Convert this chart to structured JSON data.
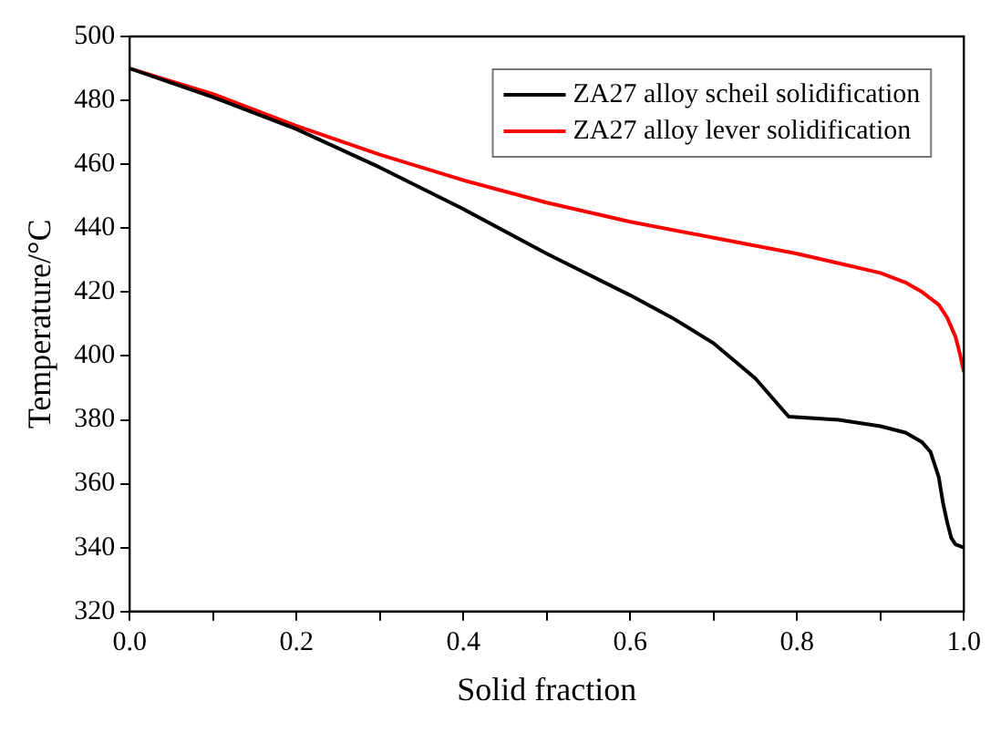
{
  "chart_data": {
    "type": "line",
    "xlabel": "Solid fraction",
    "ylabel": "Temperature/°C",
    "xlim": [
      0,
      1
    ],
    "ylim": [
      320,
      500
    ],
    "xticks": [
      {
        "value": 0,
        "label": "0.0"
      },
      {
        "value": 0.1,
        "label": null
      },
      {
        "value": 0.2,
        "label": "0.2"
      },
      {
        "value": 0.3,
        "label": null
      },
      {
        "value": 0.4,
        "label": "0.4"
      },
      {
        "value": 0.5,
        "label": null
      },
      {
        "value": 0.6,
        "label": "0.6"
      },
      {
        "value": 0.7,
        "label": null
      },
      {
        "value": 0.8,
        "label": "0.8"
      },
      {
        "value": 0.9,
        "label": null
      },
      {
        "value": 1,
        "label": "1.0"
      }
    ],
    "yticks": [
      320,
      340,
      360,
      380,
      400,
      420,
      440,
      460,
      480,
      500
    ],
    "grid": false,
    "legend": "top right",
    "marker": "none",
    "line_style": "solid",
    "series": [
      {
        "name": "ZA27 alloy scheil solidification",
        "color": "#000000",
        "x": [
          0,
          0.1,
          0.2,
          0.3,
          0.4,
          0.5,
          0.6,
          0.65,
          0.7,
          0.75,
          0.79,
          0.85,
          0.9,
          0.93,
          0.95,
          0.96,
          0.97,
          0.975,
          0.98,
          0.985,
          0.99,
          1.0
        ],
        "values": [
          490,
          481,
          471,
          459,
          446,
          432,
          419,
          412,
          404,
          393,
          381,
          380,
          378,
          376,
          373,
          370,
          362,
          354,
          348,
          343,
          341,
          340
        ]
      },
      {
        "name": "ZA27 alloy lever solidification",
        "color": "#ff0000",
        "x": [
          0,
          0.1,
          0.2,
          0.3,
          0.4,
          0.5,
          0.6,
          0.7,
          0.8,
          0.85,
          0.9,
          0.93,
          0.95,
          0.97,
          0.98,
          0.99,
          0.995,
          1.0
        ],
        "values": [
          490,
          482,
          472,
          463,
          455,
          448,
          442,
          437,
          432,
          429,
          426,
          423,
          420,
          416,
          412,
          406,
          401,
          395
        ]
      }
    ]
  }
}
